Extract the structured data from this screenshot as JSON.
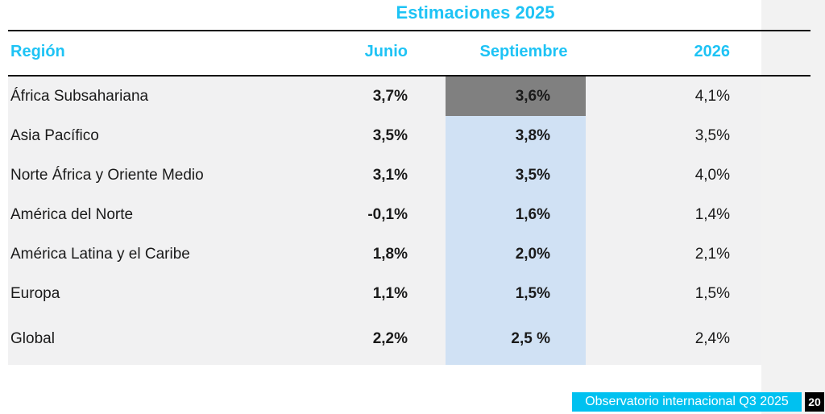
{
  "title": "Estimaciones 2025",
  "table": {
    "headers": {
      "region": "Región",
      "junio": "Junio",
      "septiembre": "Septiembre",
      "y2026": "2026"
    },
    "rows": [
      {
        "region": "África Subsahariana",
        "junio": "3,7%",
        "septiembre": "3,6%",
        "y2026": "4,1%"
      },
      {
        "region": "Asia Pacífico",
        "junio": "3,5%",
        "septiembre": "3,8%",
        "y2026": "3,5%"
      },
      {
        "region": "Norte África y Oriente Medio",
        "junio": "3,1%",
        "septiembre": "3,5%",
        "y2026": "4,0%"
      },
      {
        "region": "América del Norte",
        "junio": "-0,1%",
        "septiembre": "1,6%",
        "y2026": "1,4%"
      },
      {
        "region": "América Latina y el Caribe",
        "junio": "1,8%",
        "septiembre": "2,0%",
        "y2026": "2,1%"
      },
      {
        "region": "Europa",
        "junio": "1,1%",
        "septiembre": "1,5%",
        "y2026": "1,5%"
      },
      {
        "region": "Global",
        "junio": "2,2%",
        "septiembre": "2,5 %",
        "y2026": "2,4%"
      }
    ],
    "highlight": {
      "gray_cell": "row 0 septiembre",
      "blue_column": "septiembre rows 1-6"
    }
  },
  "footer": {
    "source_label": "Observatorio internacional Q3 2025",
    "page_number": "20"
  },
  "colors": {
    "accent_cyan": "#1ec3f5",
    "badge_cyan": "#00c1f0",
    "highlight_gray": "#808080",
    "highlight_blue": "#d0e1f4",
    "body_bg": "#f1f1f2",
    "strip_bg": "#f2f2f2",
    "rule_black": "#0f0f0f",
    "page_badge_bg": "#000000"
  }
}
